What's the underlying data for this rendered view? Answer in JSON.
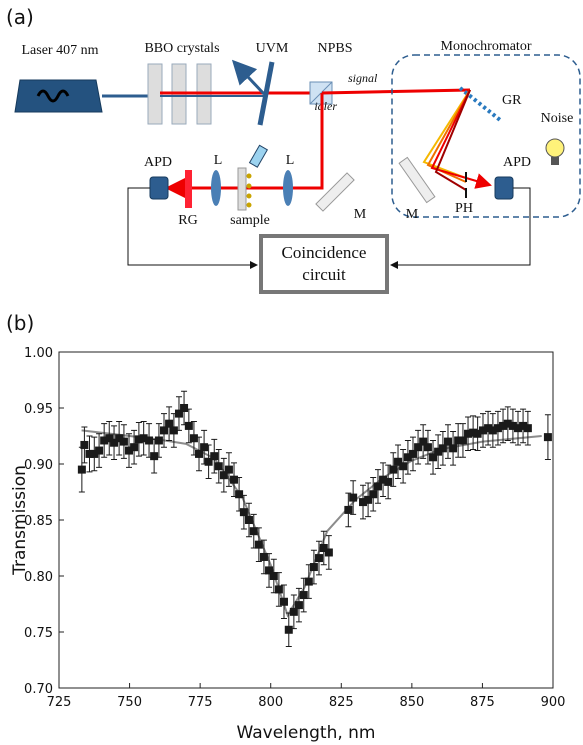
{
  "panel_a": {
    "label": "(a)",
    "laser": "Laser 407 nm",
    "bbo": "BBO crystals",
    "uvm": "UVM",
    "npbs": "NPBS",
    "monochromator": "Monochromator",
    "signal": "signal",
    "idler": "idler",
    "gr": "GR",
    "noise": "Noise",
    "apd_left": "APD",
    "apd_right": "APD",
    "lens_1": "L",
    "lens_2": "L",
    "mirror_1": "M",
    "mirror_2": "M",
    "ph": "PH",
    "rg": "RG",
    "sample": "sample",
    "coincidence_1": "Coincidence",
    "coincidence_2": "circuit"
  },
  "panel_b": {
    "label": "(b)"
  },
  "chart_data": {
    "type": "scatter",
    "x_label": "Wavelength, nm",
    "y_label": "Transmission",
    "color": "#1a1a1a",
    "fit_color": "#8c8c8c",
    "x": [
      733.1,
      734,
      735.8,
      737.5,
      739.2,
      741,
      742.8,
      744.5,
      746.3,
      748,
      749.8,
      751.6,
      753.3,
      755,
      756.9,
      758.7,
      760.4,
      762.2,
      764,
      765.7,
      767.5,
      769.3,
      771,
      772.8,
      774.6,
      776.4,
      778,
      780,
      781.6,
      783.4,
      785.2,
      787,
      788.8,
      790.5,
      792.3,
      794,
      795.8,
      797.6,
      799.4,
      801.1,
      802.9,
      804.7,
      806.4,
      808.2,
      810,
      811.7,
      813.5,
      815.3,
      817.1,
      818.8,
      820.6,
      827.5,
      829.2,
      832.7,
      834.5,
      836.3,
      838,
      839.8,
      841.6,
      843.4,
      845.1,
      846.9,
      848.6,
      850.4,
      852.2,
      854,
      855.7,
      857.5,
      859.3,
      861,
      862.8,
      864.6,
      866.4,
      868.1,
      869.9,
      871.7,
      873.3,
      875.2,
      877,
      878.7,
      880.5,
      882.3,
      884,
      885.8,
      887.6,
      889.4,
      891.1,
      898.2
    ],
    "values": [
      0.895,
      0.917,
      0.909,
      0.909,
      0.912,
      0.921,
      0.923,
      0.919,
      0.923,
      0.92,
      0.912,
      0.915,
      0.922,
      0.923,
      0.921,
      0.907,
      0.921,
      0.93,
      0.936,
      0.93,
      0.945,
      0.95,
      0.934,
      0.923,
      0.909,
      0.915,
      0.902,
      0.907,
      0.898,
      0.89,
      0.895,
      0.886,
      0.873,
      0.857,
      0.85,
      0.84,
      0.828,
      0.817,
      0.805,
      0.8,
      0.788,
      0.777,
      0.752,
      0.768,
      0.774,
      0.783,
      0.795,
      0.808,
      0.816,
      0.825,
      0.821,
      0.859,
      0.87,
      0.866,
      0.868,
      0.873,
      0.88,
      0.886,
      0.884,
      0.895,
      0.902,
      0.898,
      0.906,
      0.909,
      0.915,
      0.92,
      0.915,
      0.906,
      0.911,
      0.914,
      0.92,
      0.914,
      0.921,
      0.921,
      0.927,
      0.928,
      0.927,
      0.93,
      0.932,
      0.93,
      0.932,
      0.934,
      0.936,
      0.934,
      0.932,
      0.934,
      0.932,
      0.924
    ],
    "errors": [
      0.02,
      0.016,
      0.016,
      0.015,
      0.015,
      0.015,
      0.015,
      0.015,
      0.015,
      0.015,
      0.015,
      0.015,
      0.015,
      0.015,
      0.015,
      0.015,
      0.015,
      0.015,
      0.015,
      0.015,
      0.015,
      0.015,
      0.015,
      0.015,
      0.015,
      0.015,
      0.015,
      0.015,
      0.015,
      0.015,
      0.015,
      0.015,
      0.015,
      0.015,
      0.015,
      0.015,
      0.015,
      0.015,
      0.015,
      0.015,
      0.015,
      0.015,
      0.015,
      0.015,
      0.015,
      0.015,
      0.015,
      0.015,
      0.015,
      0.015,
      0.015,
      0.015,
      0.015,
      0.015,
      0.015,
      0.015,
      0.015,
      0.015,
      0.015,
      0.015,
      0.015,
      0.015,
      0.015,
      0.015,
      0.015,
      0.015,
      0.015,
      0.015,
      0.015,
      0.015,
      0.015,
      0.015,
      0.015,
      0.015,
      0.015,
      0.015,
      0.015,
      0.015,
      0.015,
      0.015,
      0.015,
      0.015,
      0.015,
      0.015,
      0.015,
      0.015,
      0.015,
      0.02
    ],
    "fit_x": [
      733,
      750,
      760,
      770,
      780,
      790,
      800,
      806,
      812,
      820,
      830,
      840,
      850,
      860,
      875,
      896
    ],
    "fit_values": [
      0.93,
      0.925,
      0.922,
      0.918,
      0.905,
      0.87,
      0.81,
      0.765,
      0.79,
      0.84,
      0.868,
      0.888,
      0.903,
      0.913,
      0.92,
      0.925
    ],
    "xlim": [
      725,
      900
    ],
    "xticks": [
      725,
      750,
      775,
      800,
      825,
      850,
      875,
      900
    ],
    "ylim": [
      0.7,
      1.0
    ],
    "yticks": [
      {
        "value": 0.7,
        "label": "0.70"
      },
      0.75,
      {
        "value": 0.8,
        "label": "0.80"
      },
      0.85,
      {
        "value": 0.9,
        "label": "0.90"
      },
      0.95,
      {
        "value": 1.0,
        "label": "1.00"
      }
    ]
  }
}
